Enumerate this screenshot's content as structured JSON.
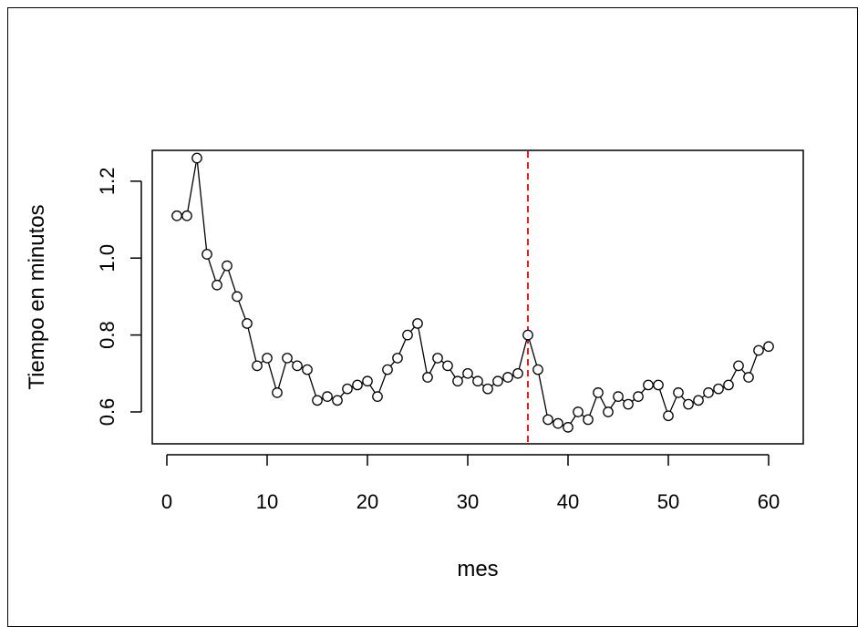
{
  "chart_data": {
    "type": "line",
    "title": "",
    "xlabel": "mes",
    "ylabel": "Tiempo en minutos",
    "xlim": [
      0,
      60
    ],
    "ylim": [
      0.55,
      1.25
    ],
    "x_ticks": [
      0,
      10,
      20,
      30,
      40,
      50,
      60
    ],
    "x_tick_labels": [
      "0",
      "10",
      "20",
      "30",
      "40",
      "50",
      "60"
    ],
    "y_ticks": [
      0.6,
      0.8,
      1.0,
      1.2
    ],
    "y_tick_labels": [
      "0.6",
      "0.8",
      "1.0",
      "1.2"
    ],
    "grid": false,
    "legend": "none",
    "marker": "open-circle",
    "line_color": "#000000",
    "reference_line": {
      "orientation": "vertical",
      "x": 36,
      "style": "dashed",
      "color": "#e0201b"
    },
    "series": [
      {
        "x": [
          1,
          2,
          3,
          4,
          5,
          6,
          7,
          8,
          9,
          10,
          11,
          12,
          13,
          14,
          15,
          16,
          17,
          18,
          19,
          20,
          21,
          22,
          23,
          24,
          25,
          26,
          27,
          28,
          29,
          30,
          31,
          32,
          33,
          34,
          35,
          36,
          37,
          38,
          39,
          40,
          41,
          42,
          43,
          44,
          45,
          46,
          47,
          48,
          49,
          50,
          51,
          52,
          53,
          54,
          55,
          56,
          57,
          58,
          59,
          60
        ],
        "values": [
          1.11,
          1.11,
          1.26,
          1.01,
          0.93,
          0.98,
          0.9,
          0.83,
          0.72,
          0.74,
          0.65,
          0.74,
          0.72,
          0.71,
          0.63,
          0.64,
          0.63,
          0.66,
          0.67,
          0.68,
          0.64,
          0.71,
          0.74,
          0.8,
          0.83,
          0.69,
          0.74,
          0.72,
          0.68,
          0.7,
          0.68,
          0.66,
          0.68,
          0.69,
          0.7,
          0.8,
          0.71,
          0.58,
          0.57,
          0.56,
          0.6,
          0.58,
          0.65,
          0.6,
          0.64,
          0.62,
          0.64,
          0.67,
          0.67,
          0.59,
          0.65,
          0.62,
          0.63,
          0.65,
          0.66,
          0.67,
          0.72,
          0.69,
          0.76,
          0.77
        ]
      }
    ]
  }
}
